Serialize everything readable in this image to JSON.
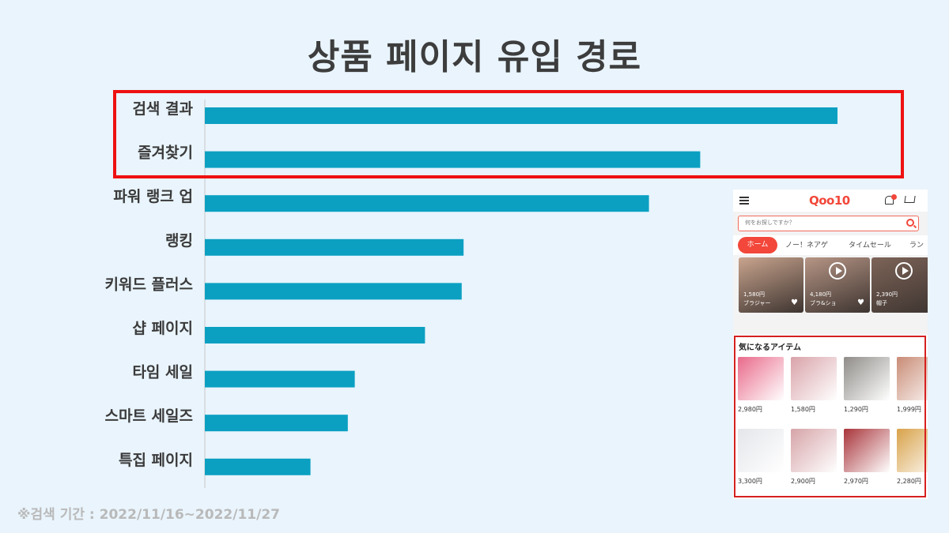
{
  "title": "상품 페이지 유입 경로",
  "footnote": "※검색 기간 : 2022/11/16~2022/11/27",
  "chart_data": {
    "type": "bar",
    "orientation": "horizontal",
    "title": "상품 페이지 유입 경로",
    "categories": [
      "검색 결과",
      "즐겨찾기",
      "파워 랭크 업",
      "랭킹",
      "키워드 플러스",
      "샵 페이지",
      "타임 세일",
      "스마트 세일즈",
      "특집 페이지"
    ],
    "values": [
      100,
      78.3,
      70.2,
      40.9,
      40.6,
      34.8,
      23.7,
      22.6,
      16.7
    ],
    "xlim": [
      0,
      100
    ],
    "grid": false,
    "legend": "none",
    "highlighted_categories": [
      "검색 결과",
      "즐겨찾기"
    ],
    "colors": {
      "bar": "#0ba0c2",
      "highlight": "#ee1111",
      "axis": "#c9c9c9"
    }
  },
  "phone": {
    "logo": "Qoo10",
    "search_placeholder": "何をお探しですか？",
    "tabs": [
      "ホーム",
      "ノー！ネアゲ",
      "タイムセール",
      "ラン"
    ],
    "thumbs": [
      {
        "price": "1,580円",
        "caption": "ブラジャー",
        "color": "#c9a48e"
      },
      {
        "price": "4,180円",
        "caption": "ブラ&ショ",
        "color": "#b69585"
      },
      {
        "price": "2,390円",
        "caption": "帽子",
        "color": "#7d6458"
      }
    ],
    "section_title": "気になるアイテム",
    "items": [
      {
        "price": "2,980円",
        "color": "#e96a8a"
      },
      {
        "price": "1,580円",
        "color": "#d9a3a9"
      },
      {
        "price": "1,290円",
        "color": "#8f8c88"
      },
      {
        "price": "1,999円",
        "color": "#c98c76"
      },
      {
        "price": "3,300円",
        "color": "#e4e6ea"
      },
      {
        "price": "2,900円",
        "color": "#d6a4a8"
      },
      {
        "price": "2,970円",
        "color": "#a8343a"
      },
      {
        "price": "2,280円",
        "color": "#d8a24a"
      }
    ],
    "accent_color": "#f2473a",
    "box_color": "#d62020"
  }
}
